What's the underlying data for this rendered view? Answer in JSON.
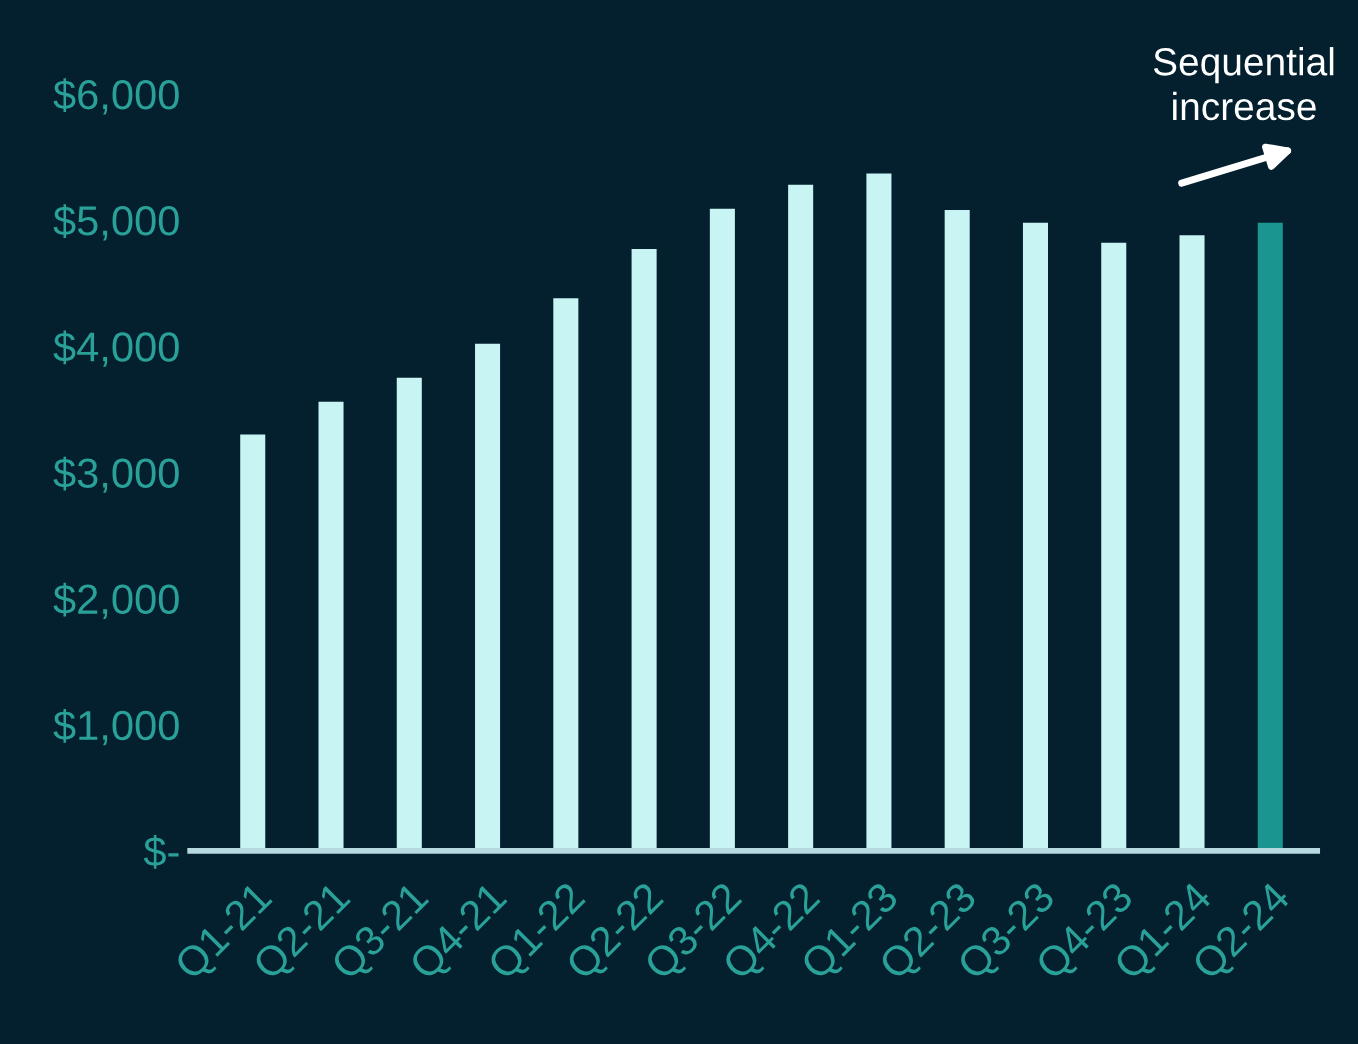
{
  "chart_data": {
    "type": "bar",
    "categories": [
      "Q1-21",
      "Q2-21",
      "Q3-21",
      "Q4-21",
      "Q1-22",
      "Q2-22",
      "Q3-22",
      "Q4-22",
      "Q1-23",
      "Q2-23",
      "Q3-23",
      "Q4-23",
      "Q1-24",
      "Q2-24"
    ],
    "values": [
      3300,
      3560,
      3750,
      4020,
      4380,
      4770,
      5090,
      5280,
      5370,
      5080,
      4980,
      4820,
      4880,
      4980
    ],
    "colors": [
      "#c8f4f4",
      "#c8f4f4",
      "#c8f4f4",
      "#c8f4f4",
      "#c8f4f4",
      "#c8f4f4",
      "#c8f4f4",
      "#c8f4f4",
      "#c8f4f4",
      "#c8f4f4",
      "#c8f4f4",
      "#c8f4f4",
      "#c8f4f4",
      "#1a9590"
    ],
    "ylim": [
      0,
      6000
    ],
    "yticks": [
      {
        "value": 0,
        "label": "$-"
      },
      {
        "value": 1000,
        "label": "$1,000"
      },
      {
        "value": 2000,
        "label": "$2,000"
      },
      {
        "value": 3000,
        "label": "$3,000"
      },
      {
        "value": 4000,
        "label": "$4,000"
      },
      {
        "value": 5000,
        "label": "$5,000"
      },
      {
        "value": 6000,
        "label": "$6,000"
      }
    ],
    "annotations": [
      "Sequential\nincrease"
    ],
    "grid": false,
    "legend": false
  }
}
